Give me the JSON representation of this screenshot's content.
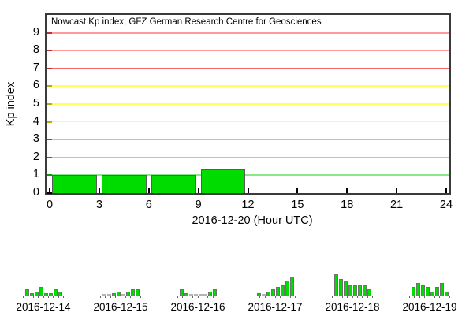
{
  "page": {
    "background": "#ffffff"
  },
  "chart_data": {
    "type": "bar",
    "title": "Nowcast Kp index, GFZ German Research Centre for Geosciences",
    "xlabel": "2016-12-20 (Hour UTC)",
    "ylabel": "Kp index",
    "xlim": [
      0,
      24
    ],
    "ylim": [
      0,
      10
    ],
    "x_ticks": [
      0,
      3,
      6,
      9,
      12,
      15,
      18,
      21,
      24
    ],
    "y_ticks": [
      0,
      1,
      2,
      3,
      4,
      5,
      6,
      7,
      8,
      9
    ],
    "grid": "horizontal-colored",
    "legend": "none",
    "bar_color": "#00dc00",
    "bar_border_color": "#5a5a5a",
    "grid_colors": {
      "1": "#8ae88a",
      "2": "#8ae88a",
      "3": "#8ae88a",
      "4": "#ffff5e",
      "5": "#ffff5e",
      "6": "#ffff5e",
      "7": "#f26a6a",
      "8": "#ff9a9a",
      "9": "#ff9a9a"
    },
    "axis_tick_colors": {
      "0": "#000000",
      "1": "#00a000",
      "2": "#00a000",
      "3": "#00a000",
      "4": "#b8b000",
      "5": "#b8b000",
      "6": "#b8b000",
      "7": "#c03030",
      "8": "#c03030",
      "9": "#c03030"
    },
    "bars": [
      {
        "start_hour": 0,
        "end_hour": 3,
        "kp": 1
      },
      {
        "start_hour": 3,
        "end_hour": 6,
        "kp": 1
      },
      {
        "start_hour": 6,
        "end_hour": 9,
        "kp": 1
      },
      {
        "start_hour": 9,
        "end_hour": 12,
        "kp": 1.33
      }
    ],
    "history": [
      {
        "date": "2016-12-14",
        "kp": [
          1,
          0.33,
          0.67,
          1.33,
          0.33,
          0.33,
          1,
          0.67
        ]
      },
      {
        "date": "2016-12-15",
        "kp": [
          0,
          0,
          0.33,
          0.67,
          0,
          0.67,
          1,
          1
        ]
      },
      {
        "date": "2016-12-16",
        "kp": [
          1,
          0.33,
          0,
          0,
          0,
          0,
          0.67,
          1
        ]
      },
      {
        "date": "2016-12-17",
        "kp": [
          0.33,
          0,
          0.67,
          1,
          1.33,
          1.67,
          2.33,
          3
        ]
      },
      {
        "date": "2016-12-18",
        "kp": [
          3.33,
          2.67,
          2.33,
          1.67,
          1.67,
          1.67,
          1.67,
          1
        ]
      },
      {
        "date": "2016-12-19",
        "kp": [
          1.33,
          2,
          1.67,
          1.33,
          0.67,
          1.33,
          2,
          0.67
        ]
      }
    ]
  }
}
